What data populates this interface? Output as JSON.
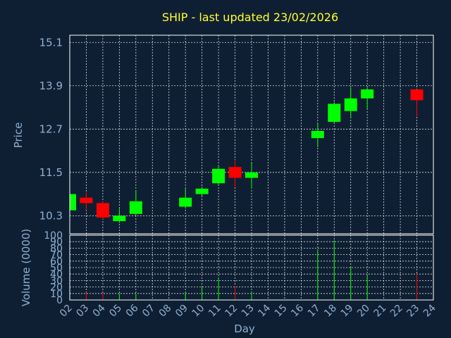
{
  "chart_data": {
    "type": "candlestick",
    "title": "SHIP - last updated 23/02/2026",
    "xlabel": "Day",
    "ylabel": "Price",
    "volume_label": "Volume (0000)",
    "x_ticks": [
      "02",
      "03",
      "04",
      "05",
      "06",
      "07",
      "08",
      "09",
      "10",
      "11",
      "12",
      "13",
      "14",
      "15",
      "16",
      "17",
      "18",
      "19",
      "20",
      "21",
      "22",
      "23",
      "24"
    ],
    "price_ticks": [
      10.3,
      11.5,
      12.7,
      13.9,
      15.1
    ],
    "price_tick_labels": [
      "10.3",
      "11.5",
      "12.7",
      "13.9",
      "15.1"
    ],
    "price_range": [
      9.8,
      15.3
    ],
    "volume_ticks": [
      0,
      10,
      20,
      30,
      40,
      50,
      60,
      70,
      80,
      90,
      100
    ],
    "volume_range": [
      0,
      100
    ],
    "x_range": [
      2,
      24
    ],
    "grid": true,
    "colors": {
      "up": "#00ff00",
      "down": "#ff0000",
      "background": "#0f1f33",
      "title": "#ffff33",
      "text": "#8fb0d0"
    },
    "candles": [
      {
        "day": 2,
        "open": 10.45,
        "close": 10.9,
        "high": 10.95,
        "low": 10.4,
        "volume": 8
      },
      {
        "day": 3,
        "open": 10.8,
        "close": 10.65,
        "high": 10.95,
        "low": 10.45,
        "volume": 12
      },
      {
        "day": 4,
        "open": 10.65,
        "close": 10.25,
        "high": 10.7,
        "low": 10.2,
        "volume": 10
      },
      {
        "day": 5,
        "open": 10.15,
        "close": 10.3,
        "high": 10.5,
        "low": 10.1,
        "volume": 10
      },
      {
        "day": 6,
        "open": 10.35,
        "close": 10.7,
        "high": 11.0,
        "low": 10.3,
        "volume": 9
      },
      {
        "day": 9,
        "open": 10.55,
        "close": 10.8,
        "high": 11.05,
        "low": 10.5,
        "volume": 12
      },
      {
        "day": 10,
        "open": 10.9,
        "close": 11.05,
        "high": 11.1,
        "low": 10.85,
        "volume": 22
      },
      {
        "day": 11,
        "open": 11.2,
        "close": 11.6,
        "high": 11.7,
        "low": 11.15,
        "volume": 35
      },
      {
        "day": 12,
        "open": 11.65,
        "close": 11.35,
        "high": 11.85,
        "low": 11.1,
        "volume": 22
      },
      {
        "day": 13,
        "open": 11.35,
        "close": 11.5,
        "high": 11.75,
        "low": 11.05,
        "volume": 12
      },
      {
        "day": 17,
        "open": 12.45,
        "close": 12.65,
        "high": 12.85,
        "low": 12.2,
        "volume": 78
      },
      {
        "day": 18,
        "open": 12.9,
        "close": 13.4,
        "high": 13.45,
        "low": 12.85,
        "volume": 92
      },
      {
        "day": 19,
        "open": 13.2,
        "close": 13.55,
        "high": 13.85,
        "low": 13.0,
        "volume": 52
      },
      {
        "day": 20,
        "open": 13.55,
        "close": 13.8,
        "high": 13.85,
        "low": 13.25,
        "volume": 38
      },
      {
        "day": 23,
        "open": 13.8,
        "close": 13.5,
        "high": 13.8,
        "low": 13.05,
        "volume": 40
      }
    ]
  }
}
